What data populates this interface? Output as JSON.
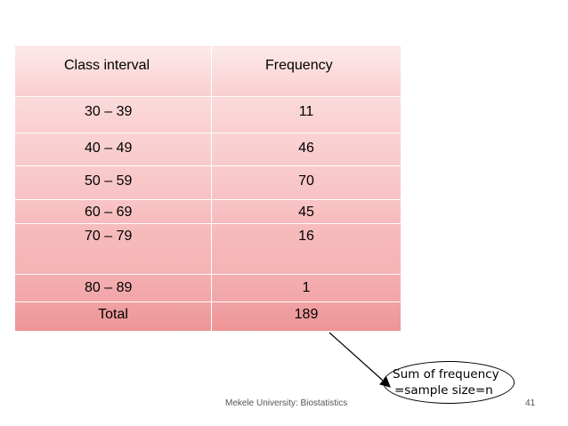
{
  "table": {
    "headers": [
      "Class interval",
      "Frequency"
    ],
    "rows": [
      {
        "interval": "30 – 39",
        "frequency": "11"
      },
      {
        "interval": "40 – 49",
        "frequency": "46"
      },
      {
        "interval": "50 – 59",
        "frequency": "70"
      },
      {
        "interval": "60 – 69",
        "frequency": "45"
      },
      {
        "interval": "70 – 79",
        "frequency": "16"
      },
      {
        "interval": "80 – 89",
        "frequency": "1"
      }
    ],
    "total": {
      "label": "Total",
      "value": "189"
    }
  },
  "callout": {
    "line1": "Sum of frequency",
    "line2": "=sample size=n"
  },
  "footer": {
    "text": "Mekele University: Biostatistics",
    "page": "41"
  },
  "colors": {
    "table_top": "#fde9ea",
    "table_bottom": "#ee9496"
  }
}
